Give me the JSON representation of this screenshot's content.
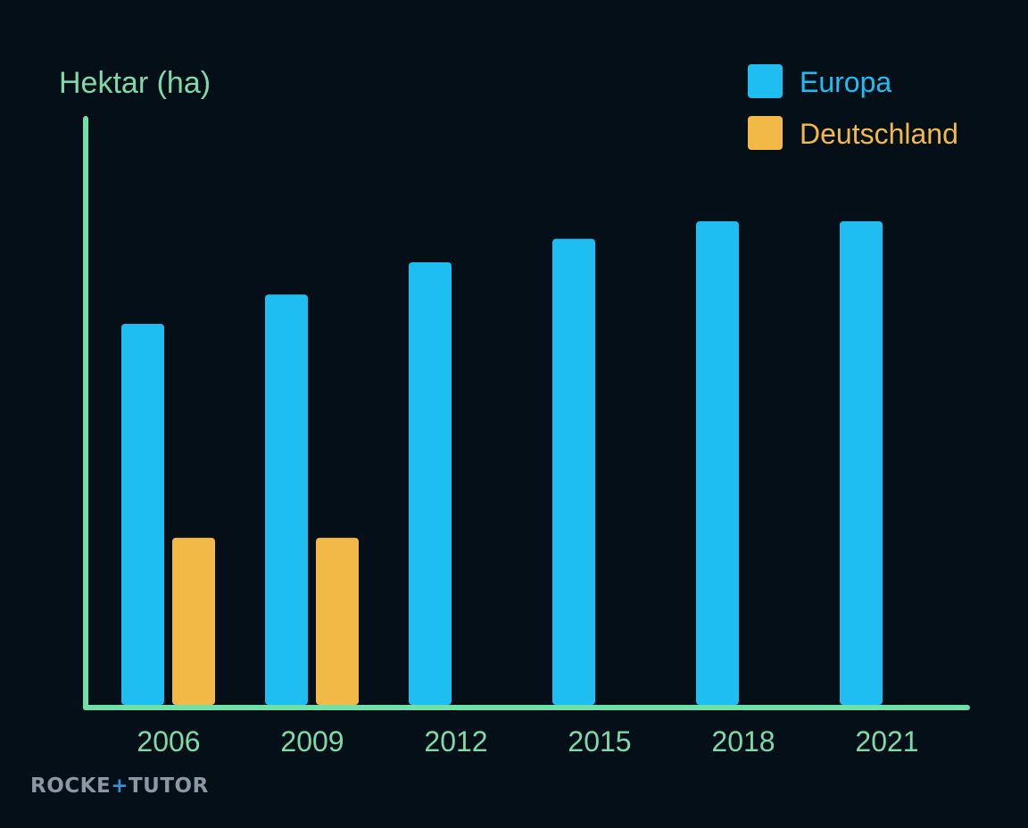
{
  "chart_data": {
    "type": "bar",
    "ylabel": "Hektar (ha)",
    "xlabel": "",
    "categories": [
      "2006",
      "2009",
      "2012",
      "2015",
      "2018",
      "2021"
    ],
    "series": [
      {
        "name": "Europa",
        "color": "#1ebef2",
        "values": [
          65,
          70,
          75.5,
          79.5,
          82.5,
          82.5
        ]
      },
      {
        "name": "Deutschland",
        "color": "#f2b947",
        "values": [
          28.5,
          28.5,
          null,
          null,
          null,
          null
        ]
      }
    ],
    "ylim": [
      0,
      100
    ],
    "grid": false,
    "legend_position": "top-right"
  },
  "colors": {
    "background": "#050f18",
    "axis": "#6ee0a8",
    "label": "#7fd9a8"
  },
  "logo": {
    "text_left": "ROCKE",
    "text_plus": "+",
    "text_right": "TUTOR"
  }
}
